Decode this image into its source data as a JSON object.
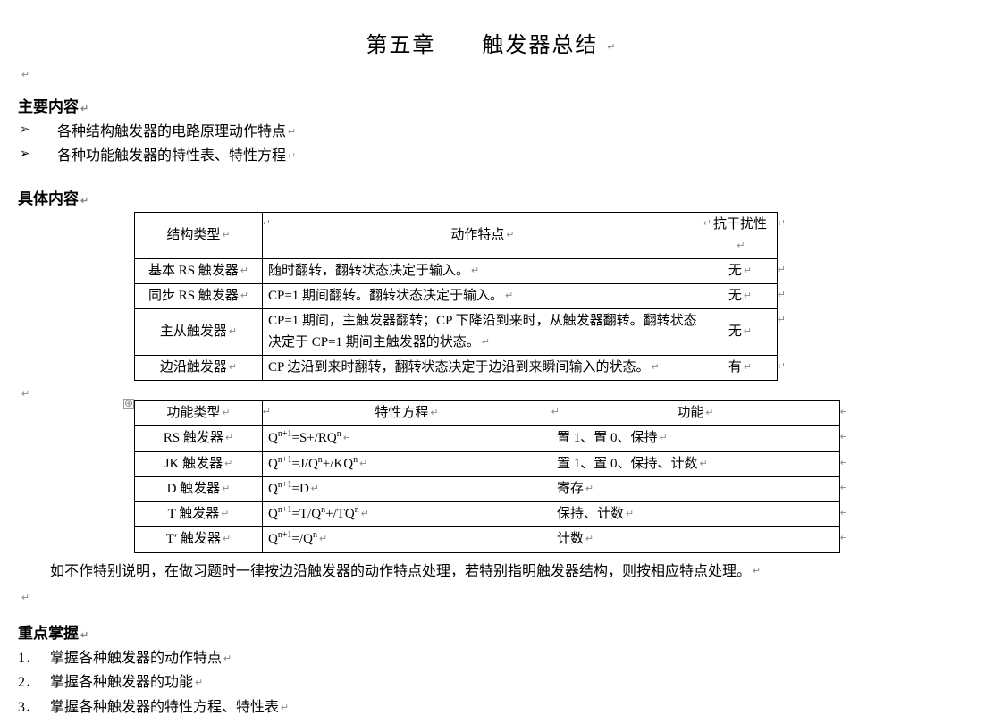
{
  "title": "第五章　　触发器总结",
  "sections": {
    "mainHeading": "主要内容",
    "mainBullets": [
      "各种结构触发器的电路原理动作特点",
      "各种功能触发器的特性表、特性方程"
    ],
    "detailHeading": "具体内容",
    "graspHeading": "重点掌握",
    "graspItems": [
      "掌握各种触发器的动作特点",
      "掌握各种触发器的功能",
      "掌握各种触发器的特性方程、特性表"
    ]
  },
  "table1": {
    "headers": [
      "结构类型",
      "动作特点",
      "抗干扰性"
    ],
    "rows": [
      {
        "type": "基本 RS 触发器",
        "action": "随时翻转，翻转状态决定于输入。",
        "noise": "无"
      },
      {
        "type": "同步 RS 触发器",
        "action": "CP=1 期间翻转。翻转状态决定于输入。",
        "noise": "无"
      },
      {
        "type": "主从触发器",
        "action": "CP=1 期间，主触发器翻转；CP 下降沿到来时，从触发器翻转。翻转状态决定于 CP=1 期间主触发器的状态。",
        "noise": "无"
      },
      {
        "type": "边沿触发器",
        "action": "CP 边沿到来时翻转，翻转状态决定于边沿到来瞬间输入的状态。",
        "noise": "有"
      }
    ]
  },
  "table2": {
    "headers": [
      "功能类型",
      "特性方程",
      "功能"
    ],
    "rows": [
      {
        "type": "RS 触发器",
        "eqParts": [
          "Q",
          "sup:n+1",
          "=S+/RQ",
          "sup:n"
        ],
        "func": "置 1、置 0、保持"
      },
      {
        "type": "JK 触发器",
        "eqParts": [
          "Q",
          "sup:n+1",
          "=J/Q",
          "sup:n",
          "+/KQ",
          "sup:n"
        ],
        "func": "置 1、置 0、保持、计数"
      },
      {
        "type": "D 触发器",
        "eqParts": [
          "Q",
          "sup:n+1",
          "=D"
        ],
        "func": "寄存"
      },
      {
        "type": "T 触发器",
        "eqParts": [
          "Q",
          "sup:n+1",
          "=T/Q",
          "sup:n",
          "+/TQ",
          "sup:n"
        ],
        "func": "保持、计数"
      },
      {
        "type": "T′ 触发器",
        "eqParts": [
          "Q",
          "sup:n+1",
          "=/Q",
          "sup:n"
        ],
        "func": "计数"
      }
    ]
  },
  "note": "如不作特别说明，在做习题时一律按边沿触发器的动作特点处理，若特别指明触发器结构，则按相应特点处理。",
  "marks": {
    "ret": "↵",
    "anchor": "⊕"
  },
  "style": {
    "bodyBg": "#ffffff",
    "textColor": "#000000",
    "markColor": "#888888",
    "titleFontSize": 24,
    "bodyFontSize": 16,
    "tableFontSize": 15
  }
}
